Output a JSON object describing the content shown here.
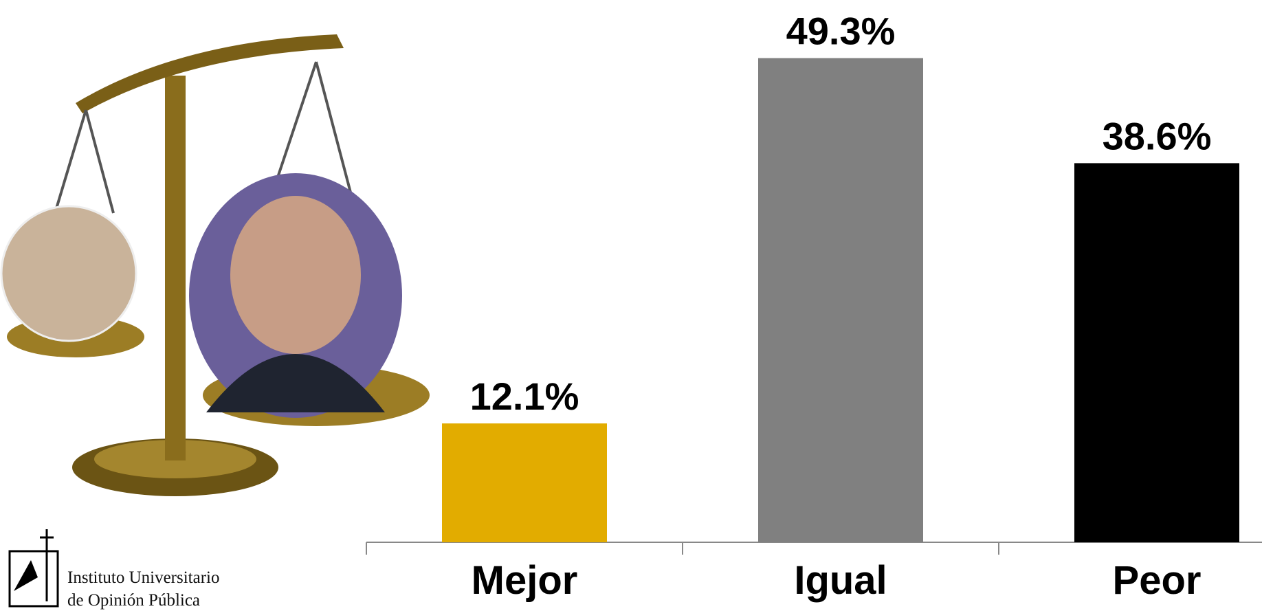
{
  "chart_data": {
    "type": "bar",
    "categories": [
      "Mejor",
      "Igual",
      "Peor"
    ],
    "values": [
      12.1,
      49.3,
      38.6
    ],
    "value_labels": [
      "12.1%",
      "49.3%",
      "38.6%"
    ],
    "colors": [
      "#e2ac00",
      "#808080",
      "#000000"
    ]
  },
  "logo": {
    "line1": "Instituto Universitario",
    "line2": "de Opinión Pública"
  }
}
